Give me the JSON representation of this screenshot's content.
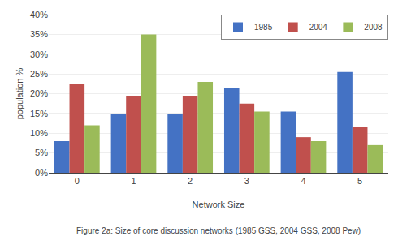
{
  "chart_data": {
    "type": "bar",
    "xlabel": "Network Size",
    "ylabel": "population %",
    "caption": "Figure 2a: Size of core discussion networks (1985 GSS, 2004 GSS, 2008 Pew)",
    "categories": [
      0,
      1,
      2,
      3,
      4,
      5
    ],
    "series": [
      {
        "name": "1985",
        "color": "#4472C4",
        "values": [
          8.0,
          15.0,
          15.0,
          21.5,
          15.5,
          25.5
        ]
      },
      {
        "name": "2004",
        "color": "#C0504D",
        "values": [
          22.5,
          19.5,
          19.5,
          17.5,
          9.0,
          11.5
        ]
      },
      {
        "name": "2008",
        "color": "#9BBB59",
        "values": [
          12.0,
          35.0,
          23.0,
          15.5,
          8.0,
          7.0
        ]
      }
    ],
    "ylim": [
      0,
      40
    ],
    "yticks": [
      {
        "value": 0,
        "label": "0%"
      },
      {
        "value": 5,
        "label": "5%"
      },
      {
        "value": 10,
        "label": "10%"
      },
      {
        "value": 15,
        "label": "15%"
      },
      {
        "value": 20,
        "label": "20%"
      },
      {
        "value": 25,
        "label": "25%"
      },
      {
        "value": 30,
        "label": "30%"
      },
      {
        "value": 35,
        "label": "35%"
      },
      {
        "value": 40,
        "label": "40%"
      }
    ],
    "grid": true,
    "legend": "upper right"
  }
}
